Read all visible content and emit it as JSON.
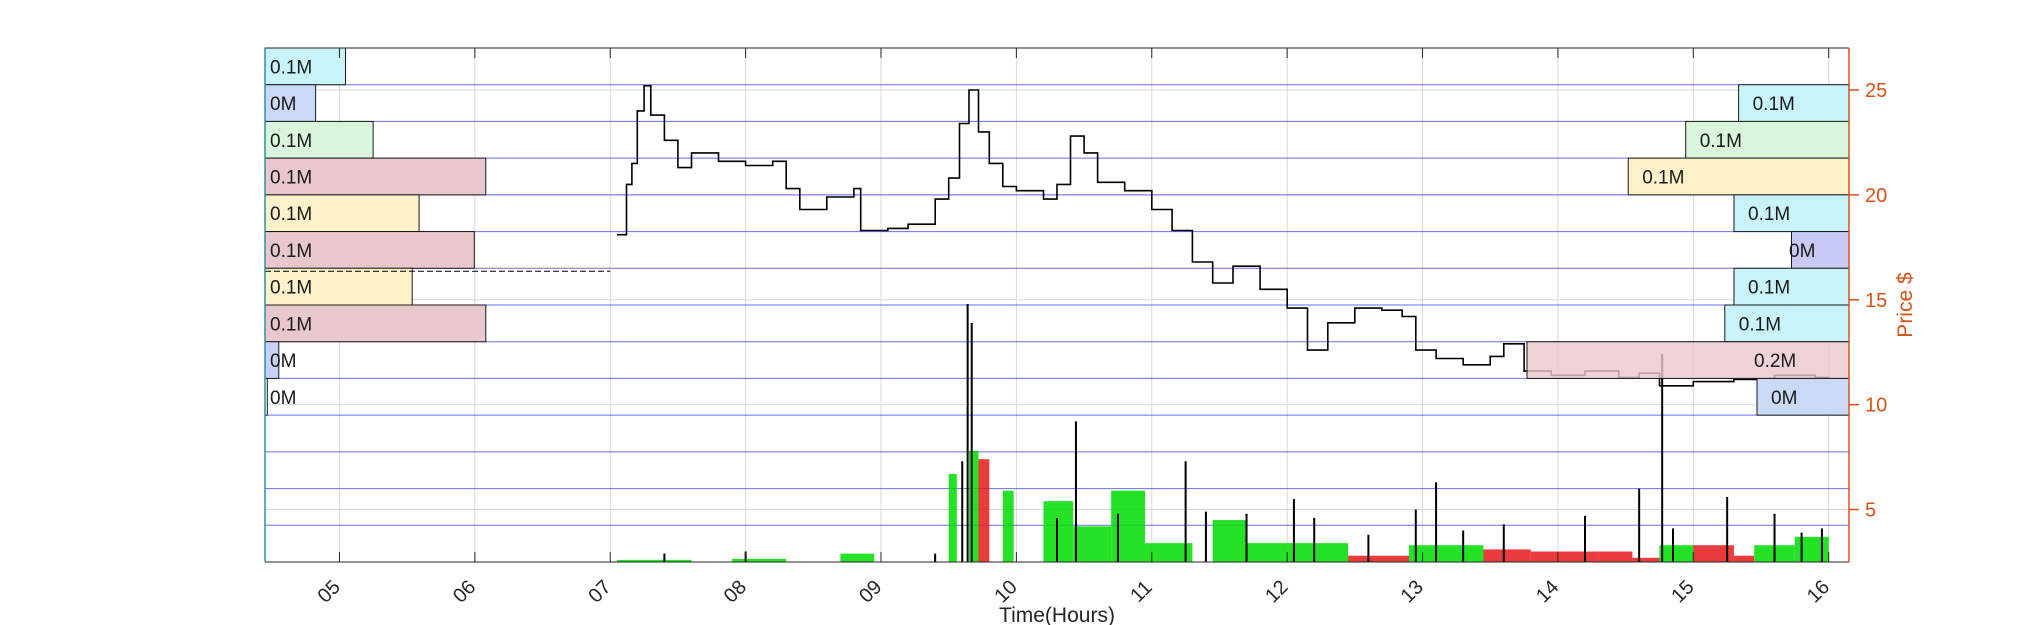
{
  "chart_data": {
    "type": "line",
    "description_type": "intraday price (line) with volume bars and volume-at-price profile bars",
    "xlabel": "Time(Hours)",
    "ylabel_right": "Price $",
    "x_ticks": [
      "05",
      "06",
      "07",
      "08",
      "09",
      "10",
      "11",
      "12",
      "13",
      "14",
      "15",
      "16"
    ],
    "x_range": [
      4.45,
      16.15
    ],
    "y_right_ticks": [
      5,
      10,
      15,
      20,
      25
    ],
    "y_right_range": [
      2.5,
      27
    ],
    "grid": true,
    "colors": {
      "price_line": "#000000",
      "volume_up": "#00dd00",
      "volume_down": "#e61a1a",
      "right_axis": "#d95319",
      "grid_blue": "#3a3af0",
      "grid_gray": "#d9d9d9",
      "left_axis": "#2b8fb0"
    },
    "price_series": [
      {
        "t": 7.05,
        "p": 18.1
      },
      {
        "t": 7.12,
        "p": 20.5
      },
      {
        "t": 7.16,
        "p": 21.5
      },
      {
        "t": 7.2,
        "p": 24.0
      },
      {
        "t": 7.25,
        "p": 25.2
      },
      {
        "t": 7.3,
        "p": 23.8
      },
      {
        "t": 7.4,
        "p": 22.6
      },
      {
        "t": 7.5,
        "p": 21.3
      },
      {
        "t": 7.6,
        "p": 22.0
      },
      {
        "t": 7.8,
        "p": 21.6
      },
      {
        "t": 8.0,
        "p": 21.4
      },
      {
        "t": 8.2,
        "p": 21.6
      },
      {
        "t": 8.3,
        "p": 20.3
      },
      {
        "t": 8.4,
        "p": 19.3
      },
      {
        "t": 8.6,
        "p": 19.9
      },
      {
        "t": 8.8,
        "p": 20.3
      },
      {
        "t": 8.85,
        "p": 18.3
      },
      {
        "t": 9.05,
        "p": 18.4
      },
      {
        "t": 9.2,
        "p": 18.6
      },
      {
        "t": 9.4,
        "p": 19.8
      },
      {
        "t": 9.5,
        "p": 20.8
      },
      {
        "t": 9.58,
        "p": 23.4
      },
      {
        "t": 9.65,
        "p": 25.0
      },
      {
        "t": 9.72,
        "p": 23.0
      },
      {
        "t": 9.8,
        "p": 21.5
      },
      {
        "t": 9.9,
        "p": 20.4
      },
      {
        "t": 10.0,
        "p": 20.2
      },
      {
        "t": 10.2,
        "p": 19.8
      },
      {
        "t": 10.3,
        "p": 20.5
      },
      {
        "t": 10.4,
        "p": 22.8
      },
      {
        "t": 10.5,
        "p": 22.0
      },
      {
        "t": 10.6,
        "p": 20.6
      },
      {
        "t": 10.8,
        "p": 20.2
      },
      {
        "t": 11.0,
        "p": 19.3
      },
      {
        "t": 11.15,
        "p": 18.3
      },
      {
        "t": 11.3,
        "p": 16.8
      },
      {
        "t": 11.45,
        "p": 15.8
      },
      {
        "t": 11.6,
        "p": 16.6
      },
      {
        "t": 11.8,
        "p": 15.5
      },
      {
        "t": 12.0,
        "p": 14.6
      },
      {
        "t": 12.15,
        "p": 12.6
      },
      {
        "t": 12.3,
        "p": 13.9
      },
      {
        "t": 12.5,
        "p": 14.6
      },
      {
        "t": 12.7,
        "p": 14.5
      },
      {
        "t": 12.85,
        "p": 14.2
      },
      {
        "t": 12.95,
        "p": 12.6
      },
      {
        "t": 13.1,
        "p": 12.2
      },
      {
        "t": 13.3,
        "p": 11.9
      },
      {
        "t": 13.5,
        "p": 12.3
      },
      {
        "t": 13.6,
        "p": 12.9
      },
      {
        "t": 13.75,
        "p": 11.6
      },
      {
        "t": 13.95,
        "p": 11.4
      },
      {
        "t": 14.2,
        "p": 11.6
      },
      {
        "t": 14.45,
        "p": 11.3
      },
      {
        "t": 14.6,
        "p": 11.5
      },
      {
        "t": 14.75,
        "p": 10.9
      },
      {
        "t": 15.0,
        "p": 11.1
      },
      {
        "t": 15.3,
        "p": 11.2
      },
      {
        "t": 15.6,
        "p": 11.4
      },
      {
        "t": 15.9,
        "p": 11.3
      },
      {
        "t": 16.0,
        "p": 11.2
      }
    ],
    "volume_bars": [
      {
        "t0": 7.05,
        "t1": 7.6,
        "v": 2.6,
        "dir": "up"
      },
      {
        "t0": 7.9,
        "t1": 8.3,
        "v": 2.65,
        "dir": "up"
      },
      {
        "t0": 8.7,
        "t1": 8.95,
        "v": 2.9,
        "dir": "up"
      },
      {
        "t0": 9.5,
        "t1": 9.56,
        "v": 6.7,
        "dir": "up"
      },
      {
        "t0": 9.65,
        "t1": 9.72,
        "v": 7.8,
        "dir": "up"
      },
      {
        "t0": 9.72,
        "t1": 9.8,
        "v": 7.4,
        "dir": "down"
      },
      {
        "t0": 9.9,
        "t1": 9.98,
        "v": 5.9,
        "dir": "up"
      },
      {
        "t0": 10.2,
        "t1": 10.42,
        "v": 5.4,
        "dir": "up"
      },
      {
        "t0": 10.42,
        "t1": 10.7,
        "v": 4.2,
        "dir": "up"
      },
      {
        "t0": 10.7,
        "t1": 10.95,
        "v": 5.9,
        "dir": "up"
      },
      {
        "t0": 10.95,
        "t1": 11.3,
        "v": 3.4,
        "dir": "up"
      },
      {
        "t0": 11.45,
        "t1": 11.7,
        "v": 4.5,
        "dir": "up"
      },
      {
        "t0": 11.7,
        "t1": 12.0,
        "v": 3.4,
        "dir": "up"
      },
      {
        "t0": 12.0,
        "t1": 12.45,
        "v": 3.4,
        "dir": "up"
      },
      {
        "t0": 12.45,
        "t1": 12.9,
        "v": 2.8,
        "dir": "down"
      },
      {
        "t0": 12.9,
        "t1": 13.45,
        "v": 3.3,
        "dir": "up"
      },
      {
        "t0": 13.45,
        "t1": 13.8,
        "v": 3.1,
        "dir": "down"
      },
      {
        "t0": 13.8,
        "t1": 14.3,
        "v": 3.0,
        "dir": "down"
      },
      {
        "t0": 14.3,
        "t1": 14.55,
        "v": 3.0,
        "dir": "down"
      },
      {
        "t0": 14.55,
        "t1": 14.75,
        "v": 2.7,
        "dir": "down"
      },
      {
        "t0": 14.75,
        "t1": 15.0,
        "v": 3.3,
        "dir": "up"
      },
      {
        "t0": 15.0,
        "t1": 15.3,
        "v": 3.3,
        "dir": "down"
      },
      {
        "t0": 15.3,
        "t1": 15.45,
        "v": 2.8,
        "dir": "down"
      },
      {
        "t0": 15.45,
        "t1": 15.75,
        "v": 3.3,
        "dir": "up"
      },
      {
        "t0": 15.75,
        "t1": 16.0,
        "v": 3.7,
        "dir": "up"
      }
    ],
    "volume_spikes": [
      {
        "t": 9.64,
        "v": 14.8
      },
      {
        "t": 9.67,
        "v": 13.9
      },
      {
        "t": 9.6,
        "v": 7.3
      },
      {
        "t": 10.44,
        "v": 9.2
      },
      {
        "t": 10.3,
        "v": 4.6
      },
      {
        "t": 10.75,
        "v": 4.8
      },
      {
        "t": 11.25,
        "v": 7.3
      },
      {
        "t": 11.4,
        "v": 4.9
      },
      {
        "t": 11.7,
        "v": 4.8
      },
      {
        "t": 12.05,
        "v": 5.5
      },
      {
        "t": 12.2,
        "v": 4.6
      },
      {
        "t": 12.6,
        "v": 3.8
      },
      {
        "t": 12.95,
        "v": 5.0
      },
      {
        "t": 13.1,
        "v": 6.3
      },
      {
        "t": 13.3,
        "v": 4.0
      },
      {
        "t": 13.6,
        "v": 4.3
      },
      {
        "t": 14.2,
        "v": 4.7
      },
      {
        "t": 14.6,
        "v": 6.0
      },
      {
        "t": 14.77,
        "v": 12.4
      },
      {
        "t": 14.85,
        "v": 4.1
      },
      {
        "t": 15.25,
        "v": 5.6
      },
      {
        "t": 15.6,
        "v": 4.8
      },
      {
        "t": 15.8,
        "v": 3.9
      },
      {
        "t": 15.95,
        "v": 4.1
      },
      {
        "t": 7.4,
        "v": 2.9
      },
      {
        "t": 8.0,
        "v": 3.0
      },
      {
        "t": 9.4,
        "v": 2.9
      }
    ],
    "volume_profile_left": [
      {
        "level": 1,
        "label": "0.1M",
        "amount": 0.35,
        "color": "#c8f3f8"
      },
      {
        "level": 2,
        "label": "0M",
        "amount": 0.22,
        "color": "#c9d9f6"
      },
      {
        "level": 3,
        "label": "0.1M",
        "amount": 0.47,
        "color": "#d9f6dc"
      },
      {
        "level": 4,
        "label": "0.1M",
        "amount": 0.96,
        "color": "#e8c8cc"
      },
      {
        "level": 5,
        "label": "0.1M",
        "amount": 0.67,
        "color": "#fdf1c9"
      },
      {
        "level": 6,
        "label": "0.1M",
        "amount": 0.91,
        "color": "#e8c8cc"
      },
      {
        "level": 7,
        "label": "0.1M",
        "amount": 0.64,
        "color": "#fdf1c9"
      },
      {
        "level": 8,
        "label": "0.1M",
        "amount": 0.96,
        "color": "#e8c8cc"
      },
      {
        "level": 9,
        "label": "0M",
        "amount": 0.06,
        "color": "#c9d0f6"
      },
      {
        "level": 10,
        "label": "0M",
        "amount": 0.01,
        "color": "#ffffff"
      }
    ],
    "volume_profile_right": [
      {
        "level": 2,
        "label": "0.1M",
        "amount": 0.48,
        "color": "#c8f3f8"
      },
      {
        "level": 3,
        "label": "0.1M",
        "amount": 0.71,
        "color": "#d9f6dc"
      },
      {
        "level": 4,
        "label": "0.1M",
        "amount": 0.96,
        "color": "#fdf1c9"
      },
      {
        "level": 5,
        "label": "0.1M",
        "amount": 0.5,
        "color": "#c8f3f8"
      },
      {
        "level": 6,
        "label": "0M",
        "amount": 0.25,
        "color": "#c9c9f6"
      },
      {
        "level": 7,
        "label": "0.1M",
        "amount": 0.5,
        "color": "#c8f3f8"
      },
      {
        "level": 8,
        "label": "0.1M",
        "amount": 0.54,
        "color": "#c8f3f8"
      },
      {
        "level": 9,
        "label": "0.2M",
        "amount": 1.4,
        "color": "#e8c8cc"
      },
      {
        "level": 10,
        "label": "0M",
        "amount": 0.4,
        "color": "#c9d9f6"
      }
    ]
  }
}
